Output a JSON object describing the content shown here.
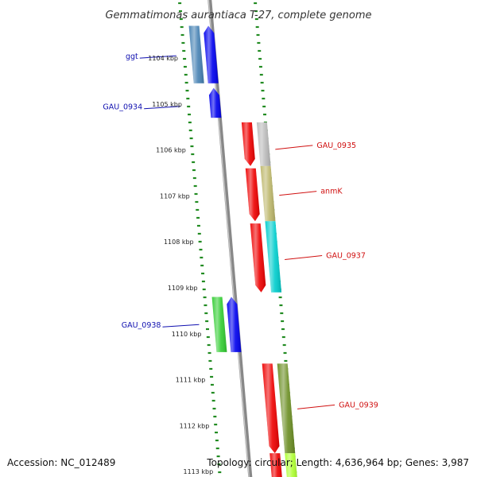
{
  "title": "Gemmatimonas aurantiaca T-27, complete genome",
  "footer": {
    "accession": "Accession: NC_012489",
    "summary": "Topology: circular; Length: 4,636,964 bp; Genes: 3,987"
  },
  "colors": {
    "backbone": "#888888",
    "ticks": "#228b22",
    "forward_label": "#1010b0",
    "reverse_label": "#d01010"
  },
  "ruler": [
    {
      "kbp": 1104,
      "label": "1104 kbp"
    },
    {
      "kbp": 1105,
      "label": "1105 kbp"
    },
    {
      "kbp": 1106,
      "label": "1106 kbp"
    },
    {
      "kbp": 1107,
      "label": "1107 kbp"
    },
    {
      "kbp": 1108,
      "label": "1108 kbp"
    },
    {
      "kbp": 1109,
      "label": "1109 kbp"
    },
    {
      "kbp": 1110,
      "label": "1110 kbp"
    },
    {
      "kbp": 1111,
      "label": "1111 kbp"
    },
    {
      "kbp": 1112,
      "label": "1112 kbp"
    },
    {
      "kbp": 1113,
      "label": "1113 kbp"
    }
  ],
  "features": [
    {
      "strand": "forward",
      "track": "cds",
      "start_kbp": 1103.3,
      "end_kbp": 1104.55,
      "color": "#0000ee",
      "arrow": true
    },
    {
      "strand": "forward",
      "track": "gene",
      "start_kbp": 1103.3,
      "end_kbp": 1104.55,
      "color": "#4682b4",
      "arrow": false
    },
    {
      "strand": "forward",
      "track": "cds",
      "start_kbp": 1104.65,
      "end_kbp": 1105.3,
      "color": "#0000ee",
      "arrow": true
    },
    {
      "strand": "reverse",
      "track": "cds",
      "start_kbp": 1105.4,
      "end_kbp": 1106.35,
      "color": "#ee0000",
      "arrow": true
    },
    {
      "strand": "reverse",
      "track": "gene",
      "start_kbp": 1105.4,
      "end_kbp": 1106.35,
      "color": "#bbbbbb",
      "arrow": false
    },
    {
      "strand": "reverse",
      "track": "cds",
      "start_kbp": 1106.4,
      "end_kbp": 1107.55,
      "color": "#ee0000",
      "arrow": true
    },
    {
      "strand": "reverse",
      "track": "gene",
      "start_kbp": 1106.35,
      "end_kbp": 1107.55,
      "color": "#bdb76b",
      "arrow": false
    },
    {
      "strand": "reverse",
      "track": "cds",
      "start_kbp": 1107.6,
      "end_kbp": 1109.1,
      "color": "#ee0000",
      "arrow": true
    },
    {
      "strand": "reverse",
      "track": "gene",
      "start_kbp": 1107.55,
      "end_kbp": 1109.1,
      "color": "#00cdcd",
      "arrow": false
    },
    {
      "strand": "forward",
      "track": "cds",
      "start_kbp": 1109.2,
      "end_kbp": 1110.4,
      "color": "#0000ee",
      "arrow": true
    },
    {
      "strand": "forward",
      "track": "gene",
      "start_kbp": 1109.2,
      "end_kbp": 1110.4,
      "color": "#32cd32",
      "arrow": false
    },
    {
      "strand": "reverse",
      "track": "cds",
      "start_kbp": 1110.65,
      "end_kbp": 1112.6,
      "color": "#ee0000",
      "arrow": true
    },
    {
      "strand": "reverse",
      "track": "gene",
      "start_kbp": 1110.65,
      "end_kbp": 1112.6,
      "color": "#6b8e23",
      "arrow": false
    },
    {
      "strand": "reverse",
      "track": "cds",
      "start_kbp": 1112.6,
      "end_kbp": 1113.3,
      "color": "#ee0000",
      "arrow": false
    },
    {
      "strand": "reverse",
      "track": "gene",
      "start_kbp": 1112.6,
      "end_kbp": 1113.3,
      "color": "#adff2f",
      "arrow": false
    }
  ],
  "gene_labels": [
    {
      "text": "ggt",
      "strand": "forward",
      "kbp": 1103.95
    },
    {
      "text": "GAU_0934",
      "strand": "forward",
      "kbp": 1105.05
    },
    {
      "text": "GAU_0935",
      "strand": "reverse",
      "kbp": 1105.9
    },
    {
      "text": "anmK",
      "strand": "reverse",
      "kbp": 1106.9
    },
    {
      "text": "GAU_0937",
      "strand": "reverse",
      "kbp": 1108.3
    },
    {
      "text": "GAU_0938",
      "strand": "forward",
      "kbp": 1109.8
    },
    {
      "text": "GAU_0939",
      "strand": "reverse",
      "kbp": 1111.55
    }
  ]
}
